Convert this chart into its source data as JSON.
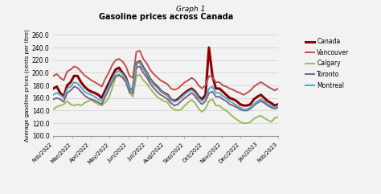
{
  "title_line1": "Graph 1",
  "title_line2": "Gasoline prices across Canada",
  "ylabel": "Average gasoline prices (cents per litre)",
  "ylim": [
    100.0,
    260.0
  ],
  "yticks": [
    100.0,
    120.0,
    140.0,
    160.0,
    180.0,
    200.0,
    220.0,
    240.0,
    260.0
  ],
  "x_labels": [
    "Feb/2022",
    "Mar/2022",
    "Apr/2022",
    "May/2022",
    "Jun/2022",
    "Jul/2022",
    "Aug/2022",
    "Sep/2022",
    "Oct/2022",
    "Nov/2022",
    "Dec/2022",
    "Jan/2023",
    "Feb/2023"
  ],
  "series": {
    "Canada": {
      "color": "#8B0000",
      "linewidth": 2.2,
      "data": [
        175,
        178,
        168,
        162,
        180,
        185,
        195,
        195,
        185,
        178,
        173,
        170,
        168,
        165,
        160,
        172,
        183,
        195,
        205,
        208,
        200,
        192,
        175,
        172,
        215,
        218,
        208,
        200,
        190,
        183,
        178,
        172,
        168,
        165,
        158,
        155,
        158,
        163,
        168,
        172,
        175,
        170,
        162,
        158,
        165,
        240,
        195,
        175,
        175,
        170,
        165,
        160,
        158,
        155,
        150,
        148,
        148,
        150,
        158,
        162,
        165,
        160,
        155,
        152,
        148,
        150
      ]
    },
    "Vancouver": {
      "color": "#C0504D",
      "linewidth": 1.4,
      "data": [
        195,
        198,
        192,
        188,
        202,
        205,
        210,
        208,
        202,
        196,
        192,
        188,
        185,
        182,
        178,
        190,
        200,
        212,
        220,
        222,
        218,
        210,
        195,
        192,
        233,
        235,
        222,
        215,
        205,
        198,
        193,
        188,
        185,
        182,
        175,
        173,
        175,
        180,
        185,
        188,
        192,
        188,
        180,
        175,
        180,
        195,
        193,
        185,
        185,
        180,
        178,
        175,
        173,
        170,
        168,
        165,
        168,
        172,
        178,
        182,
        185,
        182,
        178,
        175,
        172,
        175
      ]
    },
    "Calgary": {
      "color": "#9BBB59",
      "linewidth": 1.4,
      "data": [
        142,
        146,
        148,
        150,
        155,
        150,
        148,
        150,
        148,
        152,
        155,
        157,
        153,
        150,
        148,
        153,
        160,
        175,
        193,
        195,
        192,
        185,
        168,
        162,
        195,
        197,
        188,
        183,
        175,
        168,
        162,
        158,
        155,
        153,
        145,
        142,
        140,
        142,
        148,
        153,
        157,
        152,
        143,
        138,
        143,
        155,
        158,
        148,
        148,
        143,
        140,
        135,
        130,
        126,
        122,
        120,
        120,
        122,
        127,
        130,
        132,
        128,
        125,
        122,
        128,
        130
      ]
    },
    "Toronto": {
      "color": "#7F6084",
      "linewidth": 1.4,
      "data": [
        158,
        160,
        158,
        154,
        168,
        172,
        178,
        176,
        170,
        164,
        160,
        158,
        156,
        153,
        150,
        162,
        173,
        185,
        195,
        197,
        193,
        185,
        170,
        167,
        208,
        210,
        200,
        193,
        183,
        176,
        170,
        165,
        162,
        158,
        152,
        148,
        150,
        155,
        160,
        164,
        168,
        163,
        155,
        150,
        155,
        168,
        170,
        162,
        162,
        158,
        155,
        150,
        148,
        145,
        142,
        140,
        140,
        143,
        148,
        152,
        155,
        152,
        148,
        145,
        143,
        145
      ]
    },
    "Montreal": {
      "color": "#4BACC6",
      "linewidth": 1.4,
      "data": [
        165,
        168,
        165,
        160,
        175,
        178,
        185,
        183,
        177,
        170,
        167,
        165,
        162,
        158,
        155,
        167,
        178,
        190,
        200,
        203,
        198,
        190,
        175,
        172,
        215,
        217,
        207,
        200,
        190,
        182,
        177,
        172,
        168,
        164,
        158,
        154,
        156,
        161,
        166,
        170,
        173,
        168,
        160,
        155,
        160,
        175,
        178,
        168,
        168,
        163,
        160,
        155,
        152,
        148,
        145,
        142,
        142,
        145,
        150,
        155,
        158,
        155,
        150,
        148,
        145,
        148
      ]
    }
  },
  "background_color": "#f2f2f2",
  "grid_color": "#cccccc",
  "plot_area_color": "#f2f2f2"
}
